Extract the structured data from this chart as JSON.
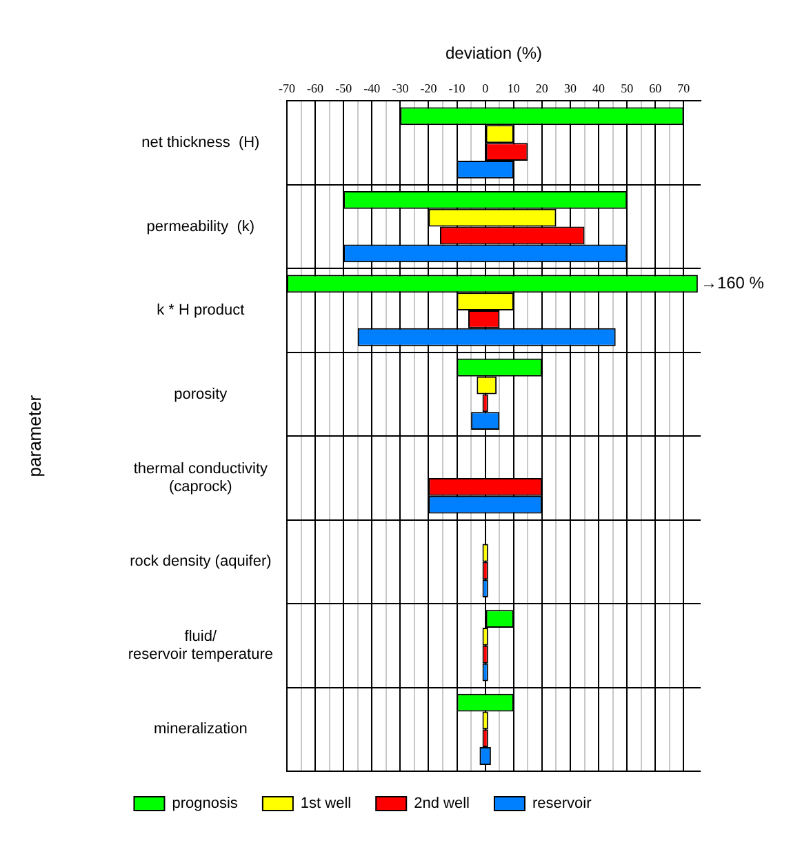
{
  "chart_data": {
    "type": "bar",
    "orientation": "horizontal",
    "xlabel": "deviation (%)",
    "ylabel": "parameter",
    "categories": [
      "net thickness  (H)",
      "permeability  (k)",
      "k * H product",
      "porosity",
      "thermal conductivity\n(caprock)",
      "rock density (aquifer)",
      "fluid/\nreservoir temperature",
      "mineralization"
    ],
    "series": [
      {
        "name": "prognosis",
        "color": "#00ff00",
        "base": [
          -30,
          -50,
          -70,
          -10,
          null,
          null,
          0,
          -10
        ],
        "values": [
          100,
          100,
          145,
          30,
          null,
          null,
          10,
          20
        ]
      },
      {
        "name": "1st well",
        "color": "#ffff00",
        "base": [
          0,
          -20,
          -10,
          -3,
          null,
          -1,
          -1,
          -1
        ],
        "values": [
          10,
          45,
          20,
          7,
          null,
          2,
          2,
          2
        ]
      },
      {
        "name": "2nd well",
        "color": "#ff0000",
        "base": [
          0,
          -16,
          -6,
          -1,
          -20,
          -1,
          -1,
          -1
        ],
        "values": [
          15,
          51,
          11,
          2,
          40,
          2,
          2,
          2
        ]
      },
      {
        "name": "reservoir",
        "color": "#0080ff",
        "base": [
          -10,
          -50,
          -45,
          -5,
          -20,
          -1,
          -1,
          -2
        ],
        "values": [
          20,
          100,
          91,
          10,
          40,
          2,
          2,
          4
        ]
      }
    ],
    "xlim": [
      -70,
      76
    ],
    "xticks": [
      -70,
      {
        "value": -65,
        "label": null
      },
      -60,
      {
        "value": -55,
        "label": null
      },
      -50,
      {
        "value": -45,
        "label": null
      },
      -40,
      {
        "value": -35,
        "label": null
      },
      -30,
      {
        "value": -25,
        "label": null
      },
      -20,
      {
        "value": -15,
        "label": null
      },
      -10,
      {
        "value": -5,
        "label": null
      },
      0,
      {
        "value": 5,
        "label": null
      },
      10,
      {
        "value": 15,
        "label": null
      },
      20,
      {
        "value": 25,
        "label": null
      },
      30,
      {
        "value": 35,
        "label": null
      },
      40,
      {
        "value": 45,
        "label": null
      },
      50,
      {
        "value": 55,
        "label": null
      },
      60,
      {
        "value": 65,
        "label": null
      },
      70
    ],
    "annotations": [
      "→160 %"
    ],
    "grid": true,
    "legend": "bottom"
  }
}
